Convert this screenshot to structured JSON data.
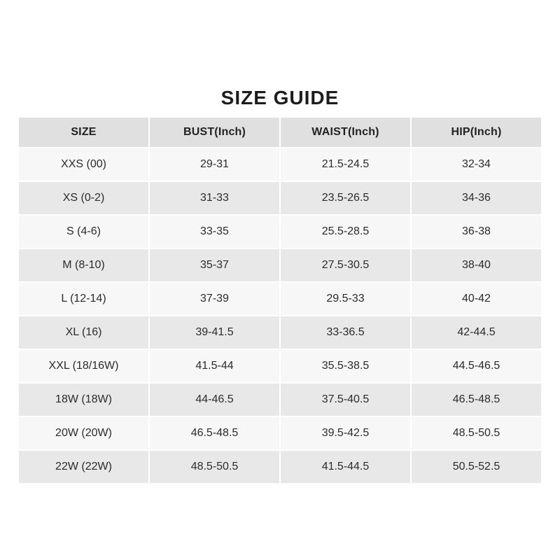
{
  "page": {
    "title": "SIZE GUIDE"
  },
  "size_table": {
    "columns": [
      "SIZE",
      "BUST(Inch)",
      "WAIST(Inch)",
      "HIP(Inch)"
    ],
    "rows": [
      [
        "XXS (00)",
        "29-31",
        "21.5-24.5",
        "32-34"
      ],
      [
        "XS (0-2)",
        "31-33",
        "23.5-26.5",
        "34-36"
      ],
      [
        "S (4-6)",
        "33-35",
        "25.5-28.5",
        "36-38"
      ],
      [
        "M (8-10)",
        "35-37",
        "27.5-30.5",
        "38-40"
      ],
      [
        "L (12-14)",
        "37-39",
        "29.5-33",
        "40-42"
      ],
      [
        "XL (16)",
        "39-41.5",
        "33-36.5",
        "42-44.5"
      ],
      [
        "XXL (18/16W)",
        "41.5-44",
        "35.5-38.5",
        "44.5-46.5"
      ],
      [
        "18W (18W)",
        "44-46.5",
        "37.5-40.5",
        "46.5-48.5"
      ],
      [
        "20W (20W)",
        "46.5-48.5",
        "39.5-42.5",
        "48.5-50.5"
      ],
      [
        "22W (22W)",
        "48.5-50.5",
        "41.5-44.5",
        "50.5-52.5"
      ]
    ]
  },
  "colors": {
    "header_bg": "#e0e0e0",
    "row_light": "#f7f7f7",
    "row_dark": "#e8e8e8",
    "title_text": "#1d1d1d",
    "cell_text": "#2b2b2b"
  }
}
